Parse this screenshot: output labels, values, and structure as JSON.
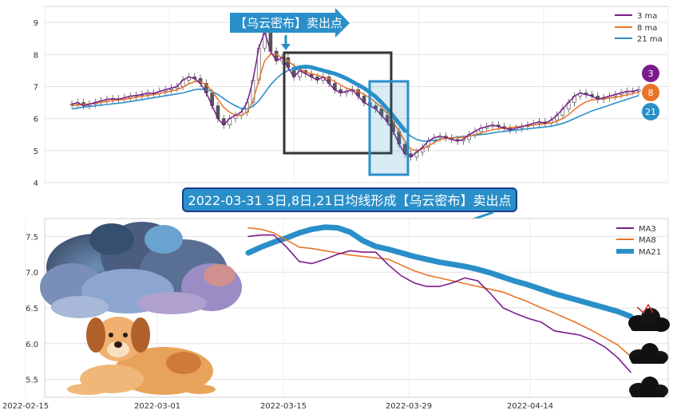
{
  "chart_data": [
    {
      "type": "line",
      "ylim": [
        4,
        9.5
      ],
      "yticks": [
        "4",
        "5",
        "6",
        "7",
        "8",
        "9"
      ],
      "legend_placement": "top-right",
      "grid": true,
      "legend": [
        {
          "name": "3 ma",
          "color": "#7b1c8c"
        },
        {
          "name": "8 ma",
          "color": "#e8742a"
        },
        {
          "name": "21 ma",
          "color": "#2a8fc9"
        }
      ],
      "badges": [
        {
          "label": "3",
          "color": "#7b1c8c"
        },
        {
          "label": "8",
          "color": "#e8742a"
        },
        {
          "label": "21",
          "color": "#2a8fc9"
        }
      ],
      "arrow_label": "【乌云密布】卖出点",
      "ma3": [
        6.45,
        6.5,
        6.4,
        6.45,
        6.5,
        6.55,
        6.6,
        6.62,
        6.6,
        6.65,
        6.7,
        6.72,
        6.75,
        6.8,
        6.78,
        6.85,
        6.9,
        6.95,
        7.0,
        7.2,
        7.3,
        7.25,
        7.1,
        6.8,
        6.4,
        6.0,
        5.8,
        6.0,
        6.1,
        6.2,
        6.5,
        7.2,
        8.2,
        8.7,
        8.1,
        7.8,
        7.9,
        7.6,
        7.3,
        7.5,
        7.4,
        7.3,
        7.2,
        7.3,
        7.1,
        6.9,
        6.8,
        6.85,
        6.9,
        6.7,
        6.5,
        6.4,
        6.3,
        6.1,
        5.9,
        5.6,
        5.2,
        4.9,
        4.8,
        4.95,
        5.1,
        5.3,
        5.4,
        5.45,
        5.4,
        5.35,
        5.3,
        5.35,
        5.5,
        5.6,
        5.7,
        5.75,
        5.8,
        5.75,
        5.7,
        5.65,
        5.7,
        5.75,
        5.8,
        5.85,
        5.9,
        5.85,
        5.95,
        6.1,
        6.3,
        6.5,
        6.7,
        6.8,
        6.75,
        6.7,
        6.6,
        6.65,
        6.7,
        6.75,
        6.8,
        6.85,
        6.85,
        6.9
      ],
      "ma8": [
        6.4,
        6.42,
        6.44,
        6.46,
        6.48,
        6.5,
        6.53,
        6.56,
        6.58,
        6.6,
        6.63,
        6.66,
        6.69,
        6.72,
        6.75,
        6.78,
        6.82,
        6.86,
        6.9,
        6.98,
        7.08,
        7.15,
        7.15,
        7.05,
        6.85,
        6.6,
        6.35,
        6.2,
        6.1,
        6.1,
        6.2,
        6.55,
        7.2,
        7.8,
        8.0,
        8.0,
        7.9,
        7.8,
        7.65,
        7.55,
        7.45,
        7.4,
        7.35,
        7.3,
        7.25,
        7.15,
        7.05,
        6.95,
        6.9,
        6.85,
        6.75,
        6.65,
        6.5,
        6.35,
        6.15,
        5.9,
        5.6,
        5.3,
        5.05,
        5.0,
        5.05,
        5.15,
        5.25,
        5.35,
        5.38,
        5.4,
        5.4,
        5.42,
        5.45,
        5.5,
        5.55,
        5.6,
        5.65,
        5.68,
        5.7,
        5.72,
        5.74,
        5.76,
        5.78,
        5.8,
        5.82,
        5.84,
        5.86,
        5.92,
        6.0,
        6.12,
        6.28,
        6.42,
        6.52,
        6.58,
        6.6,
        6.62,
        6.64,
        6.66,
        6.7,
        6.74,
        6.78,
        6.82
      ],
      "ma21": [
        6.3,
        6.33,
        6.36,
        6.38,
        6.4,
        6.42,
        6.44,
        6.46,
        6.48,
        6.5,
        6.53,
        6.56,
        6.59,
        6.62,
        6.65,
        6.68,
        6.71,
        6.74,
        6.77,
        6.8,
        6.85,
        6.9,
        6.92,
        6.9,
        6.85,
        6.75,
        6.62,
        6.5,
        6.4,
        6.32,
        6.3,
        6.38,
        6.55,
        6.8,
        7.05,
        7.25,
        7.4,
        7.5,
        7.55,
        7.6,
        7.62,
        7.6,
        7.55,
        7.5,
        7.45,
        7.4,
        7.33,
        7.25,
        7.15,
        7.05,
        6.95,
        6.82,
        6.68,
        6.5,
        6.3,
        6.08,
        5.85,
        5.62,
        5.45,
        5.35,
        5.3,
        5.3,
        5.32,
        5.35,
        5.38,
        5.4,
        5.42,
        5.44,
        5.46,
        5.48,
        5.5,
        5.52,
        5.55,
        5.58,
        5.6,
        5.62,
        5.64,
        5.66,
        5.68,
        5.7,
        5.72,
        5.74,
        5.76,
        5.8,
        5.85,
        5.92,
        6.0,
        6.08,
        6.16,
        6.24,
        6.3,
        6.36,
        6.42,
        6.48,
        6.54,
        6.6,
        6.66,
        6.72
      ]
    },
    {
      "type": "line",
      "title": "2022-03-31 3日,8日,21日均线形成【乌云密布】卖出点",
      "ylim": [
        5.25,
        7.75
      ],
      "yticks": [
        "5.5",
        "6.0",
        "6.5",
        "7.0",
        "7.5"
      ],
      "xticks": [
        "2022-02-15",
        "2022-03-01",
        "2022-03-15",
        "2022-03-29",
        "2022-04-14"
      ],
      "legend_placement": "top-right",
      "grid": true,
      "series": [
        {
          "name": "MA3",
          "color": "#7b1c8c",
          "values": [
            7.5,
            7.52,
            7.52,
            7.35,
            7.15,
            7.12,
            7.18,
            7.25,
            7.3,
            7.28,
            7.28,
            7.1,
            6.95,
            6.85,
            6.8,
            6.8,
            6.85,
            6.92,
            6.88,
            6.7,
            6.5,
            6.42,
            6.35,
            6.3,
            6.18,
            6.15,
            6.12,
            6.05,
            5.95,
            5.8,
            5.6
          ]
        },
        {
          "name": "MA8",
          "color": "#e8742a",
          "values": [
            7.62,
            7.6,
            7.55,
            7.45,
            7.35,
            7.33,
            7.3,
            7.27,
            7.24,
            7.22,
            7.2,
            7.18,
            7.1,
            7.02,
            6.96,
            6.92,
            6.88,
            6.84,
            6.8,
            6.76,
            6.72,
            6.65,
            6.58,
            6.5,
            6.43,
            6.35,
            6.27,
            6.18,
            6.08,
            5.98,
            5.82
          ]
        },
        {
          "name": "MA21",
          "color": "#2a8fc9",
          "values": [
            7.27,
            7.35,
            7.42,
            7.48,
            7.55,
            7.6,
            7.63,
            7.62,
            7.56,
            7.44,
            7.36,
            7.32,
            7.27,
            7.22,
            7.18,
            7.14,
            7.11,
            7.08,
            7.04,
            6.99,
            6.93,
            6.87,
            6.82,
            6.76,
            6.7,
            6.65,
            6.6,
            6.55,
            6.5,
            6.45,
            6.38
          ]
        }
      ]
    }
  ]
}
